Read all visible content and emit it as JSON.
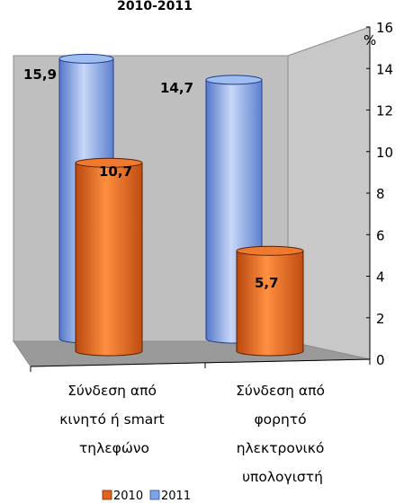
{
  "chart_data": {
    "type": "bar",
    "style": "3d-cylinder",
    "title": "2010-2011",
    "ylabel": "%",
    "ylim": [
      0,
      16
    ],
    "yticks": [
      0,
      2,
      4,
      6,
      8,
      10,
      12,
      14,
      16
    ],
    "categories": [
      [
        "Σύνδεση από",
        "κινητό ή smart",
        "τηλεφώνο"
      ],
      [
        "Σύνδεση από",
        "φορητό",
        "ηλεκτρονικό",
        "υπολογιστή"
      ]
    ],
    "series": [
      {
        "name": "2010",
        "values": [
          10.7,
          5.7
        ],
        "labels": [
          "10,7",
          "5,7"
        ],
        "color": "#E0621F"
      },
      {
        "name": "2011",
        "values": [
          15.9,
          14.7
        ],
        "labels": [
          "15,9",
          "14,7"
        ],
        "color": "#7EA3E6"
      }
    ],
    "legend_position": "bottom",
    "grid": false
  }
}
